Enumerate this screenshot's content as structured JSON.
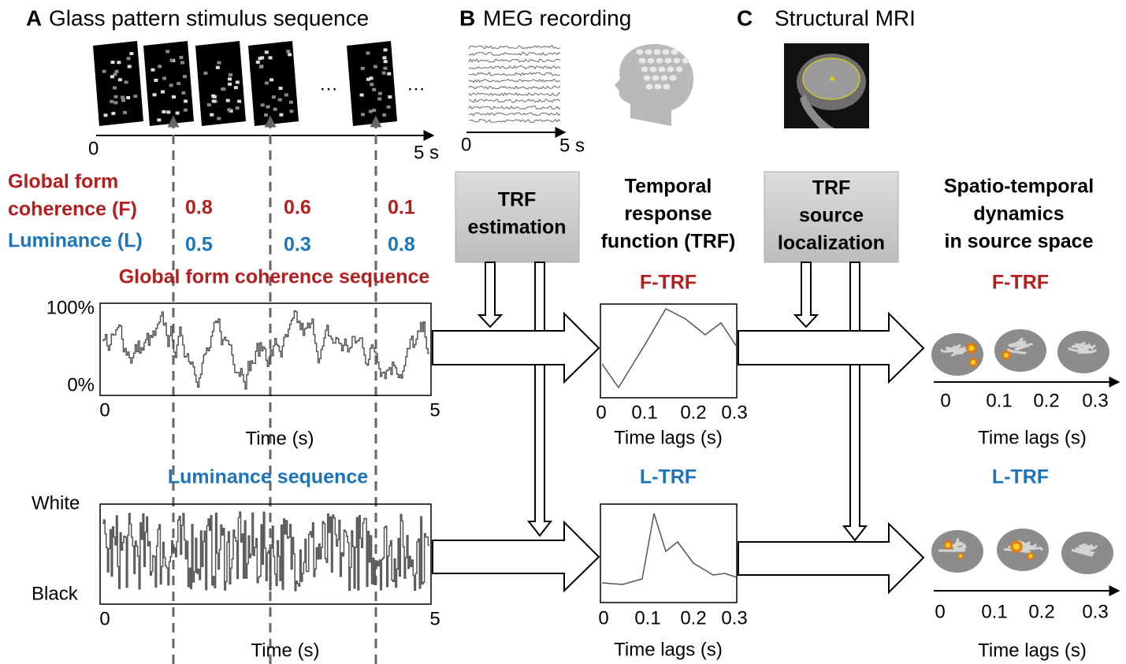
{
  "panels": {
    "a": {
      "letter": "A",
      "title": "Glass pattern stimulus sequence",
      "ellipses": [
        "…",
        "…"
      ],
      "axis": {
        "start": "0",
        "end": "5 s"
      }
    },
    "b": {
      "letter": "B",
      "title": "MEG recording",
      "axis": {
        "start": "0",
        "end": "5 s"
      }
    },
    "c": {
      "letter": "C",
      "title": "Structural MRI"
    }
  },
  "parameters": {
    "form": {
      "label_lines": [
        "Global form",
        "coherence (F)"
      ],
      "values": [
        "0.8",
        "0.6",
        "0.1"
      ]
    },
    "luminance": {
      "label": "Luminance (L)",
      "values": [
        "0.5",
        "0.3",
        "0.8"
      ]
    }
  },
  "sequences": [
    {
      "title": "Global form coherence sequence",
      "y_top": "100%",
      "y_bottom": "0%",
      "x_start": "0",
      "x_end": "5",
      "x_label": "Time (s)"
    },
    {
      "title": "Luminance sequence",
      "y_top": "White",
      "y_bottom": "Black",
      "x_start": "0",
      "x_end": "5",
      "x_label": "Time (s)"
    }
  ],
  "steps": [
    {
      "lines": [
        "TRF",
        "estimation"
      ]
    },
    {
      "lines": [
        "TRF",
        "source",
        "localization"
      ]
    }
  ],
  "trf_column": {
    "title_lines": [
      "Temporal",
      "response",
      "function (TRF)"
    ],
    "plots": [
      {
        "title": "F-TRF",
        "xticks": [
          "0",
          "0.1",
          "0.2",
          "0.3"
        ],
        "x_label": "Time lags (s)"
      },
      {
        "title": "L-TRF",
        "xticks": [
          "0",
          "0.1",
          "0.2",
          "0.3"
        ],
        "x_label": "Time lags (s)"
      }
    ]
  },
  "source_column": {
    "title_lines": [
      "Spatio-temporal",
      "dynamics",
      "in source space"
    ],
    "panels": [
      {
        "title": "F-TRF",
        "xticks": [
          "0",
          "0.1",
          "0.2",
          "0.3"
        ],
        "x_label": "Time lags (s)"
      },
      {
        "title": "L-TRF",
        "xticks": [
          "0",
          "0.1",
          "0.2",
          "0.3"
        ],
        "x_label": "Time lags (s)"
      }
    ]
  }
}
